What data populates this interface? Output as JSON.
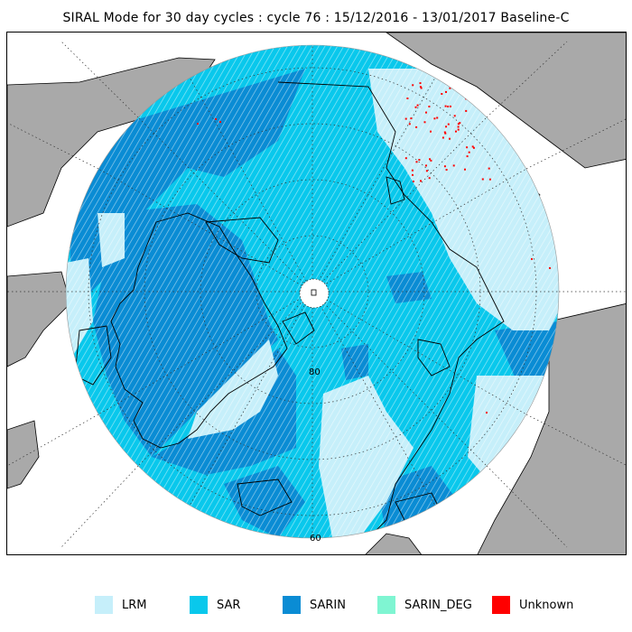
{
  "title": "SIRAL Mode for 30 day cycles : cycle 76 : 15/12/2016 - 13/01/2017 Baseline-C",
  "colors": {
    "LRM": "#c6effa",
    "SAR": "#09c8ec",
    "SARIN": "#0a8cd4",
    "SARIN_DEG": "#7ff5d2",
    "Unknown": "#ff0000",
    "land": "#a9a9a9",
    "background": "#ffffff"
  },
  "map": {
    "projection": "north polar stereographic",
    "latitude_labels": [
      "80",
      "60"
    ]
  },
  "legend": [
    {
      "key": "LRM",
      "label": "LRM"
    },
    {
      "key": "SAR",
      "label": "SAR"
    },
    {
      "key": "SARIN",
      "label": "SARIN"
    },
    {
      "key": "SARIN_DEG",
      "label": "SARIN_DEG"
    },
    {
      "key": "Unknown",
      "label": "Unknown"
    }
  ]
}
